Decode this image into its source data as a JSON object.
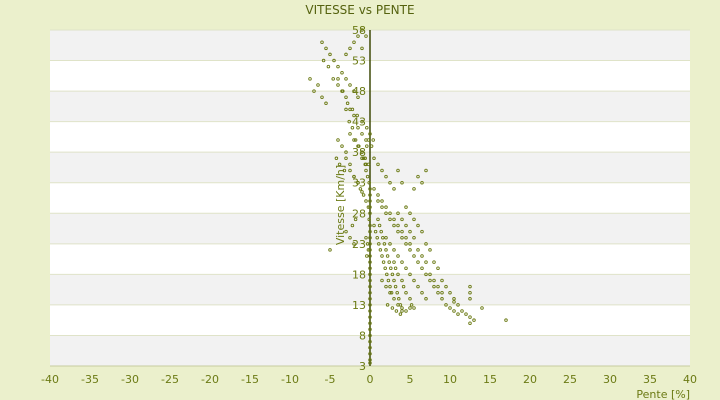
{
  "chart_data": {
    "type": "scatter",
    "title": "VITESSE vs PENTE",
    "xlabel": "Pente [%]",
    "ylabel": "Vitesse [Km/h]",
    "xlim": [
      -40,
      40
    ],
    "ylim": [
      3,
      58
    ],
    "grid": true,
    "legend": "none",
    "x_ticks": [
      "-40",
      "-35",
      "-30",
      "-25",
      "-20",
      "-15",
      "-10",
      "-5",
      "0",
      "5",
      "10",
      "15",
      "20",
      "25",
      "30",
      "35",
      "40"
    ],
    "y_ticks": [
      "3",
      "8",
      "13",
      "18",
      "23",
      "28",
      "33",
      "38",
      "43",
      "48",
      "53",
      "58"
    ],
    "y_tick_labels_visible": [
      "3",
      "3",
      "8",
      "13",
      "18",
      "23",
      "28",
      "",
      "",
      "",
      "48",
      ""
    ],
    "colors": {
      "page_bg": "#ebf0cc",
      "plot_bg": "#ffffff",
      "band_bg": "#f2f2f2",
      "point": "#6b7a14",
      "axis": "#3f4a08"
    },
    "series": [
      {
        "values_note": "",
        "points": [
          [
            -6,
            56
          ],
          [
            -5.5,
            55
          ],
          [
            -5,
            54
          ],
          [
            -4.5,
            53
          ],
          [
            -4,
            52
          ],
          [
            -3.5,
            51
          ],
          [
            -3,
            50
          ],
          [
            -2.5,
            49
          ],
          [
            -2,
            48
          ],
          [
            -1.5,
            47
          ],
          [
            -5.8,
            53
          ],
          [
            -5.2,
            52
          ],
          [
            -4.6,
            50
          ],
          [
            -4,
            49
          ],
          [
            -3.4,
            48
          ],
          [
            -2.8,
            46
          ],
          [
            -2.2,
            45
          ],
          [
            -1.6,
            44
          ],
          [
            -1,
            43
          ],
          [
            -0.4,
            42
          ],
          [
            -4,
            50
          ],
          [
            -3.5,
            48
          ],
          [
            -3,
            47
          ],
          [
            -2.5,
            45
          ],
          [
            -2,
            44
          ],
          [
            -1.5,
            42
          ],
          [
            -1,
            41
          ],
          [
            -0.5,
            40
          ],
          [
            -3,
            45
          ],
          [
            -2.6,
            43
          ],
          [
            -2.2,
            42
          ],
          [
            -1.8,
            40
          ],
          [
            -1.4,
            39
          ],
          [
            -1,
            38
          ],
          [
            -0.6,
            37
          ],
          [
            -0.2,
            36
          ],
          [
            -2.5,
            41
          ],
          [
            -2,
            40
          ],
          [
            -1.5,
            39
          ],
          [
            -1,
            37
          ],
          [
            -0.5,
            36
          ],
          [
            -2,
            56
          ],
          [
            -1.5,
            57
          ],
          [
            -1,
            58
          ],
          [
            -2.5,
            55
          ],
          [
            -3,
            54
          ],
          [
            -1,
            55
          ],
          [
            -0.5,
            57
          ],
          [
            -7,
            48
          ],
          [
            -6.5,
            49
          ],
          [
            -6,
            47
          ],
          [
            -5.5,
            46
          ],
          [
            -7.5,
            50
          ],
          [
            -4,
            40
          ],
          [
            -3.5,
            39
          ],
          [
            -3,
            38
          ],
          [
            -4.2,
            37
          ],
          [
            -3.8,
            36
          ],
          [
            -2.5,
            35
          ],
          [
            -2,
            34
          ],
          [
            -1.5,
            33
          ],
          [
            -0.5,
            35
          ],
          [
            -0.3,
            34
          ],
          [
            -0.1,
            33
          ],
          [
            0,
            32
          ],
          [
            0,
            31
          ],
          [
            0,
            30
          ],
          [
            0,
            29
          ],
          [
            0,
            28
          ],
          [
            -1,
            38
          ],
          [
            -0.8,
            37
          ],
          [
            -0.6,
            36
          ],
          [
            -0.4,
            39
          ],
          [
            -0.2,
            40
          ],
          [
            0,
            41
          ],
          [
            0.2,
            39
          ],
          [
            0.4,
            40
          ],
          [
            0.5,
            32
          ],
          [
            1,
            31
          ],
          [
            1.5,
            30
          ],
          [
            2,
            29
          ],
          [
            2.5,
            28
          ],
          [
            3,
            27
          ],
          [
            3.5,
            26
          ],
          [
            4,
            25
          ],
          [
            4.5,
            24
          ],
          [
            5,
            23
          ],
          [
            1,
            30
          ],
          [
            1.5,
            29
          ],
          [
            2,
            28
          ],
          [
            2.5,
            27
          ],
          [
            3,
            26
          ],
          [
            3.5,
            25
          ],
          [
            4,
            24
          ],
          [
            4.5,
            23
          ],
          [
            5,
            22
          ],
          [
            5.5,
            21
          ],
          [
            6,
            20
          ],
          [
            6.5,
            19
          ],
          [
            7,
            18
          ],
          [
            7.5,
            17
          ],
          [
            8,
            16
          ],
          [
            8.5,
            15
          ],
          [
            9,
            14
          ],
          [
            9.5,
            13
          ],
          [
            10,
            12.5
          ],
          [
            10.5,
            12
          ],
          [
            11,
            11.5
          ],
          [
            4.5,
            29
          ],
          [
            5,
            28
          ],
          [
            5.5,
            27
          ],
          [
            6,
            26
          ],
          [
            6.5,
            25
          ],
          [
            7,
            23
          ],
          [
            7.5,
            22
          ],
          [
            8,
            20
          ],
          [
            8.5,
            19
          ],
          [
            9,
            17
          ],
          [
            9.5,
            16
          ],
          [
            10,
            15
          ],
          [
            10.5,
            14
          ],
          [
            11,
            13
          ],
          [
            11.5,
            12
          ],
          [
            12,
            11.5
          ],
          [
            12.5,
            11
          ],
          [
            3.5,
            28
          ],
          [
            4,
            27
          ],
          [
            4.5,
            26
          ],
          [
            5,
            25
          ],
          [
            5.5,
            24
          ],
          [
            6,
            22
          ],
          [
            6.5,
            21
          ],
          [
            7,
            20
          ],
          [
            7.5,
            18
          ],
          [
            8,
            17
          ],
          [
            8.5,
            16
          ],
          [
            9,
            15
          ],
          [
            1,
            27
          ],
          [
            1.2,
            26
          ],
          [
            1.4,
            25
          ],
          [
            1.6,
            24
          ],
          [
            1.8,
            23
          ],
          [
            2,
            22
          ],
          [
            2.2,
            21
          ],
          [
            2.4,
            20
          ],
          [
            2.6,
            19
          ],
          [
            2.8,
            18
          ],
          [
            3,
            17
          ],
          [
            3.2,
            16
          ],
          [
            3.4,
            15
          ],
          [
            3.6,
            14
          ],
          [
            3.8,
            13
          ],
          [
            4,
            12.5
          ],
          [
            0.5,
            26
          ],
          [
            0.7,
            25
          ],
          [
            0.9,
            24
          ],
          [
            1.1,
            23
          ],
          [
            1.3,
            22
          ],
          [
            1.5,
            21
          ],
          [
            1.7,
            20
          ],
          [
            1.9,
            19
          ],
          [
            2.1,
            18
          ],
          [
            2.3,
            17
          ],
          [
            2.5,
            16
          ],
          [
            2.7,
            15
          ],
          [
            2,
            24
          ],
          [
            2.5,
            23
          ],
          [
            3,
            22
          ],
          [
            3.5,
            21
          ],
          [
            4,
            20
          ],
          [
            4.5,
            19
          ],
          [
            5,
            18
          ],
          [
            5.5,
            17
          ],
          [
            6,
            16
          ],
          [
            6.5,
            15
          ],
          [
            7,
            14
          ],
          [
            3,
            20
          ],
          [
            3.2,
            19
          ],
          [
            3.5,
            18
          ],
          [
            4,
            17
          ],
          [
            4.2,
            16
          ],
          [
            4.5,
            15
          ],
          [
            5,
            14
          ],
          [
            5.2,
            13
          ],
          [
            5.5,
            12.5
          ],
          [
            1.5,
            17
          ],
          [
            2,
            16
          ],
          [
            2.5,
            15
          ],
          [
            3,
            14
          ],
          [
            3.5,
            13
          ],
          [
            4,
            12
          ],
          [
            4.5,
            12
          ],
          [
            5,
            12.5
          ],
          [
            2.2,
            13
          ],
          [
            2.8,
            12.5
          ],
          [
            3.3,
            12
          ],
          [
            3.8,
            11.5
          ],
          [
            0,
            26
          ],
          [
            0,
            25
          ],
          [
            0,
            24
          ],
          [
            0,
            23
          ],
          [
            0,
            22
          ],
          [
            0,
            21
          ],
          [
            0,
            20
          ],
          [
            0,
            19
          ],
          [
            0,
            18
          ],
          [
            0,
            17
          ],
          [
            0,
            16
          ],
          [
            0,
            15
          ],
          [
            0,
            14
          ],
          [
            0,
            13
          ],
          [
            0,
            12
          ],
          [
            0,
            11
          ],
          [
            0,
            10
          ],
          [
            0,
            9
          ],
          [
            0,
            8
          ],
          [
            0,
            7
          ],
          [
            0,
            6
          ],
          [
            0,
            5
          ],
          [
            0,
            4
          ],
          [
            0,
            3.5
          ],
          [
            -0.5,
            24
          ],
          [
            -0.3,
            23
          ],
          [
            -0.2,
            22
          ],
          [
            -0.4,
            21
          ],
          [
            -0.1,
            27
          ],
          [
            -0.2,
            29
          ],
          [
            -0.5,
            30
          ],
          [
            -0.8,
            31
          ],
          [
            -1.5,
            33
          ],
          [
            -2,
            34
          ],
          [
            -2.5,
            36
          ],
          [
            -3,
            37
          ],
          [
            -3.2,
            35
          ],
          [
            -1.2,
            32
          ],
          [
            -1,
            31.5
          ],
          [
            -2,
            23
          ],
          [
            -2.5,
            24
          ],
          [
            -5,
            22
          ],
          [
            -3,
            25
          ],
          [
            -1.8,
            27
          ],
          [
            -2.2,
            26
          ],
          [
            12.5,
            14
          ],
          [
            12.5,
            15
          ],
          [
            12.5,
            16
          ],
          [
            13,
            10.5
          ],
          [
            12.5,
            10
          ],
          [
            17,
            10.5
          ],
          [
            14,
            12.5
          ],
          [
            10.5,
            13.5
          ],
          [
            1.5,
            35
          ],
          [
            2,
            34
          ],
          [
            2.5,
            33
          ],
          [
            3,
            32
          ],
          [
            1,
            36
          ],
          [
            0.5,
            37
          ],
          [
            4,
            33
          ],
          [
            3.5,
            35
          ],
          [
            6,
            34
          ],
          [
            7,
            35
          ],
          [
            6.5,
            33
          ],
          [
            5.5,
            32
          ]
        ]
      }
    ]
  }
}
